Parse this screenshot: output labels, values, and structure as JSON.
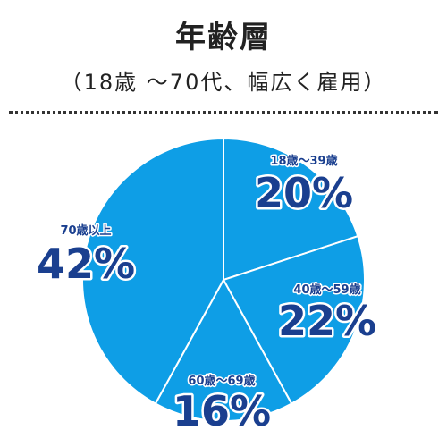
{
  "header": {
    "title": "年齢層",
    "subtitle": "（18歳 ～70代、幅広く雇用）"
  },
  "chart_data": {
    "type": "pie",
    "title": "年齢層",
    "subtitle": "（18歳 ～70代、幅広く雇用）",
    "start_angle_deg": 0,
    "direction": "clockwise",
    "slice_color": "#0e9ee6",
    "border_color": "#ffffff",
    "label_color": "#1a3f8f",
    "slices": [
      {
        "label": "18歳～39歳",
        "value": 20,
        "value_label": "20%"
      },
      {
        "label": "40歳～59歳",
        "value": 22,
        "value_label": "22%"
      },
      {
        "label": "60歳～69歳",
        "value": 16,
        "value_label": "16%"
      },
      {
        "label": "70歳以上",
        "value": 42,
        "value_label": "42%"
      }
    ]
  }
}
